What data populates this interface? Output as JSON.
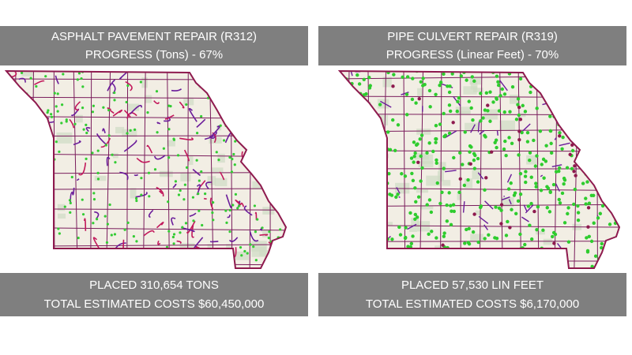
{
  "panels": [
    {
      "header": {
        "line1": "ASPHALT PAVEMENT REPAIR (R312)",
        "line2": "PROGRESS (Tons) - 67%"
      },
      "footer": {
        "line1": "PLACED 310,654 TONS",
        "line2": "TOTAL ESTIMATED COSTS $60,450,000"
      }
    },
    {
      "header": {
        "line1": "PIPE CULVERT REPAIR (R319)",
        "line2": "PROGRESS (Linear Feet) - 70%"
      },
      "footer": {
        "line1": "PLACED 57,530 LIN FEET",
        "line2": "TOTAL ESTIMATED COSTS $6,170,000"
      }
    }
  ]
}
